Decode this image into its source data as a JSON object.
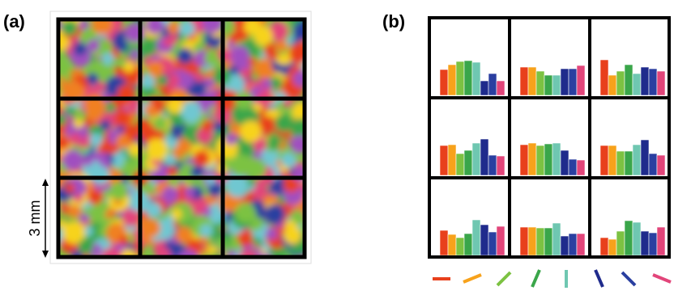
{
  "panel_a": {
    "label": "(a)",
    "scale_label": "3 mm"
  },
  "panel_b": {
    "label": "(b)"
  },
  "chart_data": [
    {
      "type": "bar",
      "colors": [
        "#e8401c",
        "#f7a21b",
        "#7cc242",
        "#3aa64a",
        "#6fc7b1",
        "#1f2b8c",
        "#2a3fa0",
        "#e2457a"
      ],
      "values": [
        32,
        38,
        42,
        43,
        41,
        18,
        27,
        18
      ]
    },
    {
      "type": "bar",
      "colors": [
        "#e8401c",
        "#f7a21b",
        "#7cc242",
        "#3aa64a",
        "#6fc7b1",
        "#1f2b8c",
        "#2a3fa0",
        "#e2457a"
      ],
      "values": [
        35,
        35,
        30,
        25,
        25,
        33,
        33,
        37
      ]
    },
    {
      "type": "bar",
      "colors": [
        "#e8401c",
        "#f7a21b",
        "#7cc242",
        "#3aa64a",
        "#6fc7b1",
        "#1f2b8c",
        "#2a3fa0",
        "#e2457a"
      ],
      "values": [
        44,
        25,
        30,
        38,
        27,
        35,
        33,
        30
      ]
    },
    {
      "type": "bar",
      "colors": [
        "#e8401c",
        "#f7a21b",
        "#7cc242",
        "#3aa64a",
        "#6fc7b1",
        "#1f2b8c",
        "#2a3fa0",
        "#e2457a"
      ],
      "values": [
        37,
        38,
        27,
        31,
        40,
        45,
        25,
        24
      ]
    },
    {
      "type": "bar",
      "colors": [
        "#e8401c",
        "#f7a21b",
        "#7cc242",
        "#3aa64a",
        "#6fc7b1",
        "#1f2b8c",
        "#2a3fa0",
        "#e2457a"
      ],
      "values": [
        38,
        40,
        37,
        39,
        40,
        31,
        20,
        19
      ]
    },
    {
      "type": "bar",
      "colors": [
        "#e8401c",
        "#f7a21b",
        "#7cc242",
        "#3aa64a",
        "#6fc7b1",
        "#1f2b8c",
        "#2a3fa0",
        "#e2457a"
      ],
      "values": [
        37,
        37,
        30,
        30,
        38,
        44,
        27,
        25
      ]
    },
    {
      "type": "bar",
      "colors": [
        "#e8401c",
        "#f7a21b",
        "#7cc242",
        "#3aa64a",
        "#6fc7b1",
        "#1f2b8c",
        "#2a3fa0",
        "#e2457a"
      ],
      "values": [
        31,
        26,
        22,
        27,
        44,
        38,
        29,
        36
      ]
    },
    {
      "type": "bar",
      "colors": [
        "#e8401c",
        "#f7a21b",
        "#7cc242",
        "#3aa64a",
        "#6fc7b1",
        "#1f2b8c",
        "#2a3fa0",
        "#e2457a"
      ],
      "values": [
        35,
        35,
        34,
        34,
        40,
        24,
        27,
        27
      ]
    },
    {
      "type": "bar",
      "colors": [
        "#e8401c",
        "#f7a21b",
        "#7cc242",
        "#3aa64a",
        "#6fc7b1",
        "#1f2b8c",
        "#2a3fa0",
        "#e2457a"
      ],
      "values": [
        22,
        20,
        30,
        43,
        41,
        30,
        28,
        35
      ]
    }
  ]
}
